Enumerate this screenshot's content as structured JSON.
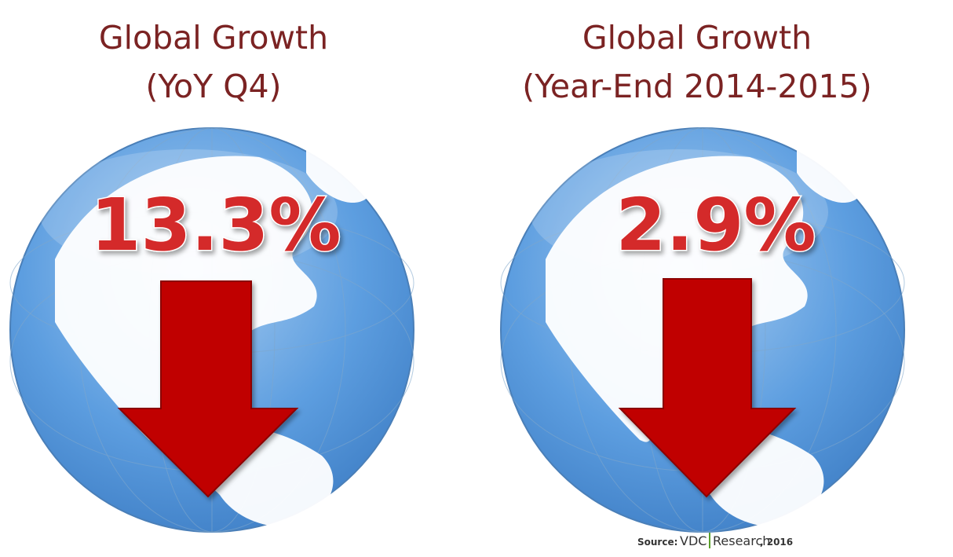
{
  "panels": [
    {
      "title_lines": [
        "Global Growth",
        "(YoY Q4)"
      ],
      "value": "13.3%"
    },
    {
      "title_lines": [
        "Global Growth",
        "(Year-End 2014-2015)"
      ],
      "value": "2.9%"
    }
  ],
  "source": {
    "label": "Source:",
    "brand": "VDC",
    "brand2": "Research",
    "year": ", 2016"
  }
}
